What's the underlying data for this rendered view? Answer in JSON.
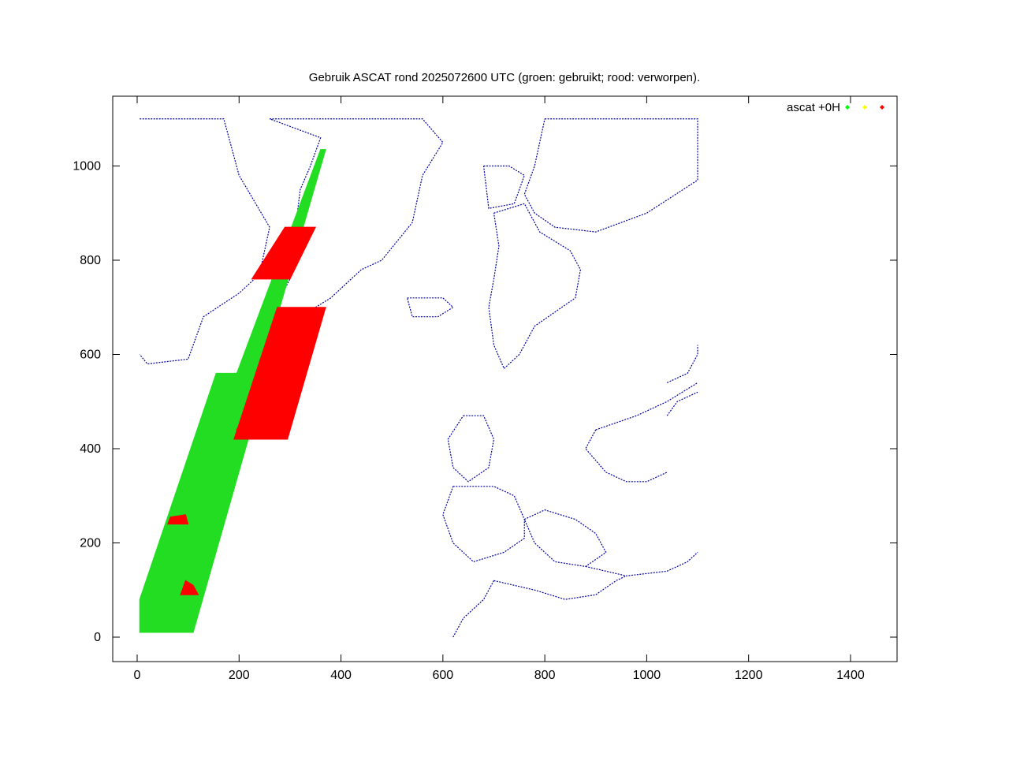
{
  "chart_data": {
    "type": "scatter",
    "title": "Gebruik ASCAT rond 2025072600 UTC (groen: gebruikt; rood: verworpen).",
    "xlabel": "",
    "ylabel": "",
    "xlim": [
      -50,
      1460
    ],
    "ylim": [
      -50,
      1100
    ],
    "xticks": [
      0,
      200,
      400,
      600,
      800,
      1000,
      1200,
      1400
    ],
    "yticks": [
      0,
      200,
      400,
      600,
      800,
      1000
    ],
    "grid": false,
    "legend": {
      "placement": "top-right",
      "label": "ascat +0H",
      "colors": [
        "#00ff00",
        "#ffff00",
        "#ff0000"
      ]
    },
    "colors": {
      "used": "#22dd22",
      "rejected": "#ff0000",
      "coast": "#0000a0",
      "axis": "#000000"
    },
    "series": [
      {
        "status": "used",
        "color": "#22dd22",
        "regions": [
          [
            [
              5,
              10
            ],
            [
              95,
              10
            ],
            [
              370,
              1035
            ],
            [
              360,
              1035
            ]
          ],
          [
            [
              5,
              10
            ],
            [
              110,
              10
            ],
            [
              255,
              560
            ],
            [
              155,
              560
            ],
            [
              5,
              80
            ]
          ]
        ]
      },
      {
        "status": "rejected",
        "color": "#ff0000",
        "regions": [
          [
            [
              190,
              420
            ],
            [
              295,
              420
            ],
            [
              370,
              700
            ],
            [
              275,
              700
            ]
          ],
          [
            [
              225,
              760
            ],
            [
              300,
              760
            ],
            [
              350,
              870
            ],
            [
              290,
              870
            ]
          ],
          [
            [
              195,
              440
            ],
            [
              250,
              440
            ],
            [
              248,
              450
            ],
            [
              200,
              450
            ]
          ],
          [
            [
              85,
              90
            ],
            [
              120,
              90
            ],
            [
              110,
              110
            ],
            [
              95,
              120
            ]
          ],
          [
            [
              60,
              240
            ],
            [
              100,
              240
            ],
            [
              95,
              260
            ],
            [
              65,
              255
            ]
          ]
        ]
      }
    ],
    "coastlines": [
      [
        [
          5,
          1100
        ],
        [
          170,
          1100
        ],
        [
          200,
          980
        ],
        [
          260,
          870
        ],
        [
          240,
          770
        ],
        [
          200,
          730
        ],
        [
          130,
          680
        ],
        [
          100,
          590
        ],
        [
          20,
          580
        ],
        [
          5,
          600
        ]
      ],
      [
        [
          260,
          1100
        ],
        [
          560,
          1100
        ],
        [
          600,
          1050
        ],
        [
          560,
          980
        ],
        [
          540,
          880
        ],
        [
          480,
          800
        ],
        [
          440,
          780
        ],
        [
          380,
          720
        ],
        [
          320,
          680
        ],
        [
          260,
          680
        ],
        [
          300,
          760
        ],
        [
          310,
          860
        ],
        [
          320,
          950
        ],
        [
          340,
          1000
        ],
        [
          360,
          1060
        ],
        [
          260,
          1100
        ]
      ],
      [
        [
          530,
          720
        ],
        [
          600,
          720
        ],
        [
          620,
          700
        ],
        [
          590,
          680
        ],
        [
          540,
          680
        ],
        [
          530,
          720
        ]
      ],
      [
        [
          680,
          1000
        ],
        [
          730,
          1000
        ],
        [
          760,
          980
        ],
        [
          740,
          920
        ],
        [
          690,
          910
        ],
        [
          680,
          1000
        ]
      ],
      [
        [
          800,
          1100
        ],
        [
          1100,
          1100
        ],
        [
          1100,
          970
        ],
        [
          1000,
          900
        ],
        [
          950,
          880
        ],
        [
          900,
          860
        ],
        [
          820,
          870
        ],
        [
          780,
          900
        ],
        [
          760,
          940
        ],
        [
          780,
          1000
        ],
        [
          800,
          1100
        ]
      ],
      [
        [
          700,
          900
        ],
        [
          760,
          920
        ],
        [
          790,
          860
        ],
        [
          850,
          820
        ],
        [
          870,
          780
        ],
        [
          860,
          720
        ],
        [
          820,
          690
        ],
        [
          780,
          660
        ],
        [
          750,
          600
        ],
        [
          720,
          570
        ],
        [
          700,
          620
        ],
        [
          690,
          700
        ],
        [
          700,
          760
        ],
        [
          710,
          830
        ],
        [
          700,
          900
        ]
      ],
      [
        [
          640,
          470
        ],
        [
          680,
          470
        ],
        [
          700,
          420
        ],
        [
          690,
          360
        ],
        [
          650,
          330
        ],
        [
          620,
          360
        ],
        [
          610,
          420
        ],
        [
          640,
          470
        ]
      ],
      [
        [
          620,
          320
        ],
        [
          700,
          320
        ],
        [
          740,
          300
        ],
        [
          760,
          250
        ],
        [
          760,
          210
        ],
        [
          720,
          180
        ],
        [
          660,
          160
        ],
        [
          620,
          200
        ],
        [
          600,
          260
        ],
        [
          620,
          320
        ]
      ],
      [
        [
          760,
          250
        ],
        [
          800,
          270
        ],
        [
          860,
          250
        ],
        [
          900,
          220
        ],
        [
          920,
          180
        ],
        [
          880,
          150
        ],
        [
          820,
          160
        ],
        [
          780,
          200
        ],
        [
          760,
          250
        ]
      ],
      [
        [
          880,
          150
        ],
        [
          960,
          130
        ],
        [
          1040,
          140
        ],
        [
          1080,
          160
        ],
        [
          1100,
          180
        ]
      ],
      [
        [
          700,
          120
        ],
        [
          740,
          110
        ],
        [
          780,
          100
        ],
        [
          840,
          80
        ],
        [
          900,
          90
        ],
        [
          940,
          120
        ],
        [
          960,
          130
        ]
      ],
      [
        [
          620,
          0
        ],
        [
          640,
          40
        ],
        [
          680,
          80
        ],
        [
          700,
          120
        ]
      ],
      [
        [
          900,
          440
        ],
        [
          980,
          470
        ],
        [
          1040,
          500
        ],
        [
          1100,
          540
        ]
      ],
      [
        [
          900,
          440
        ],
        [
          880,
          400
        ],
        [
          920,
          350
        ],
        [
          960,
          330
        ],
        [
          1000,
          330
        ],
        [
          1040,
          350
        ]
      ],
      [
        [
          1040,
          470
        ],
        [
          1060,
          500
        ],
        [
          1100,
          520
        ]
      ],
      [
        [
          1040,
          540
        ],
        [
          1080,
          560
        ],
        [
          1100,
          600
        ],
        [
          1100,
          620
        ]
      ]
    ]
  },
  "label_text": {
    "title": "Gebruik ASCAT rond 2025072600 UTC (groen: gebruikt; rood: verworpen).",
    "legend": "ascat +0H"
  }
}
